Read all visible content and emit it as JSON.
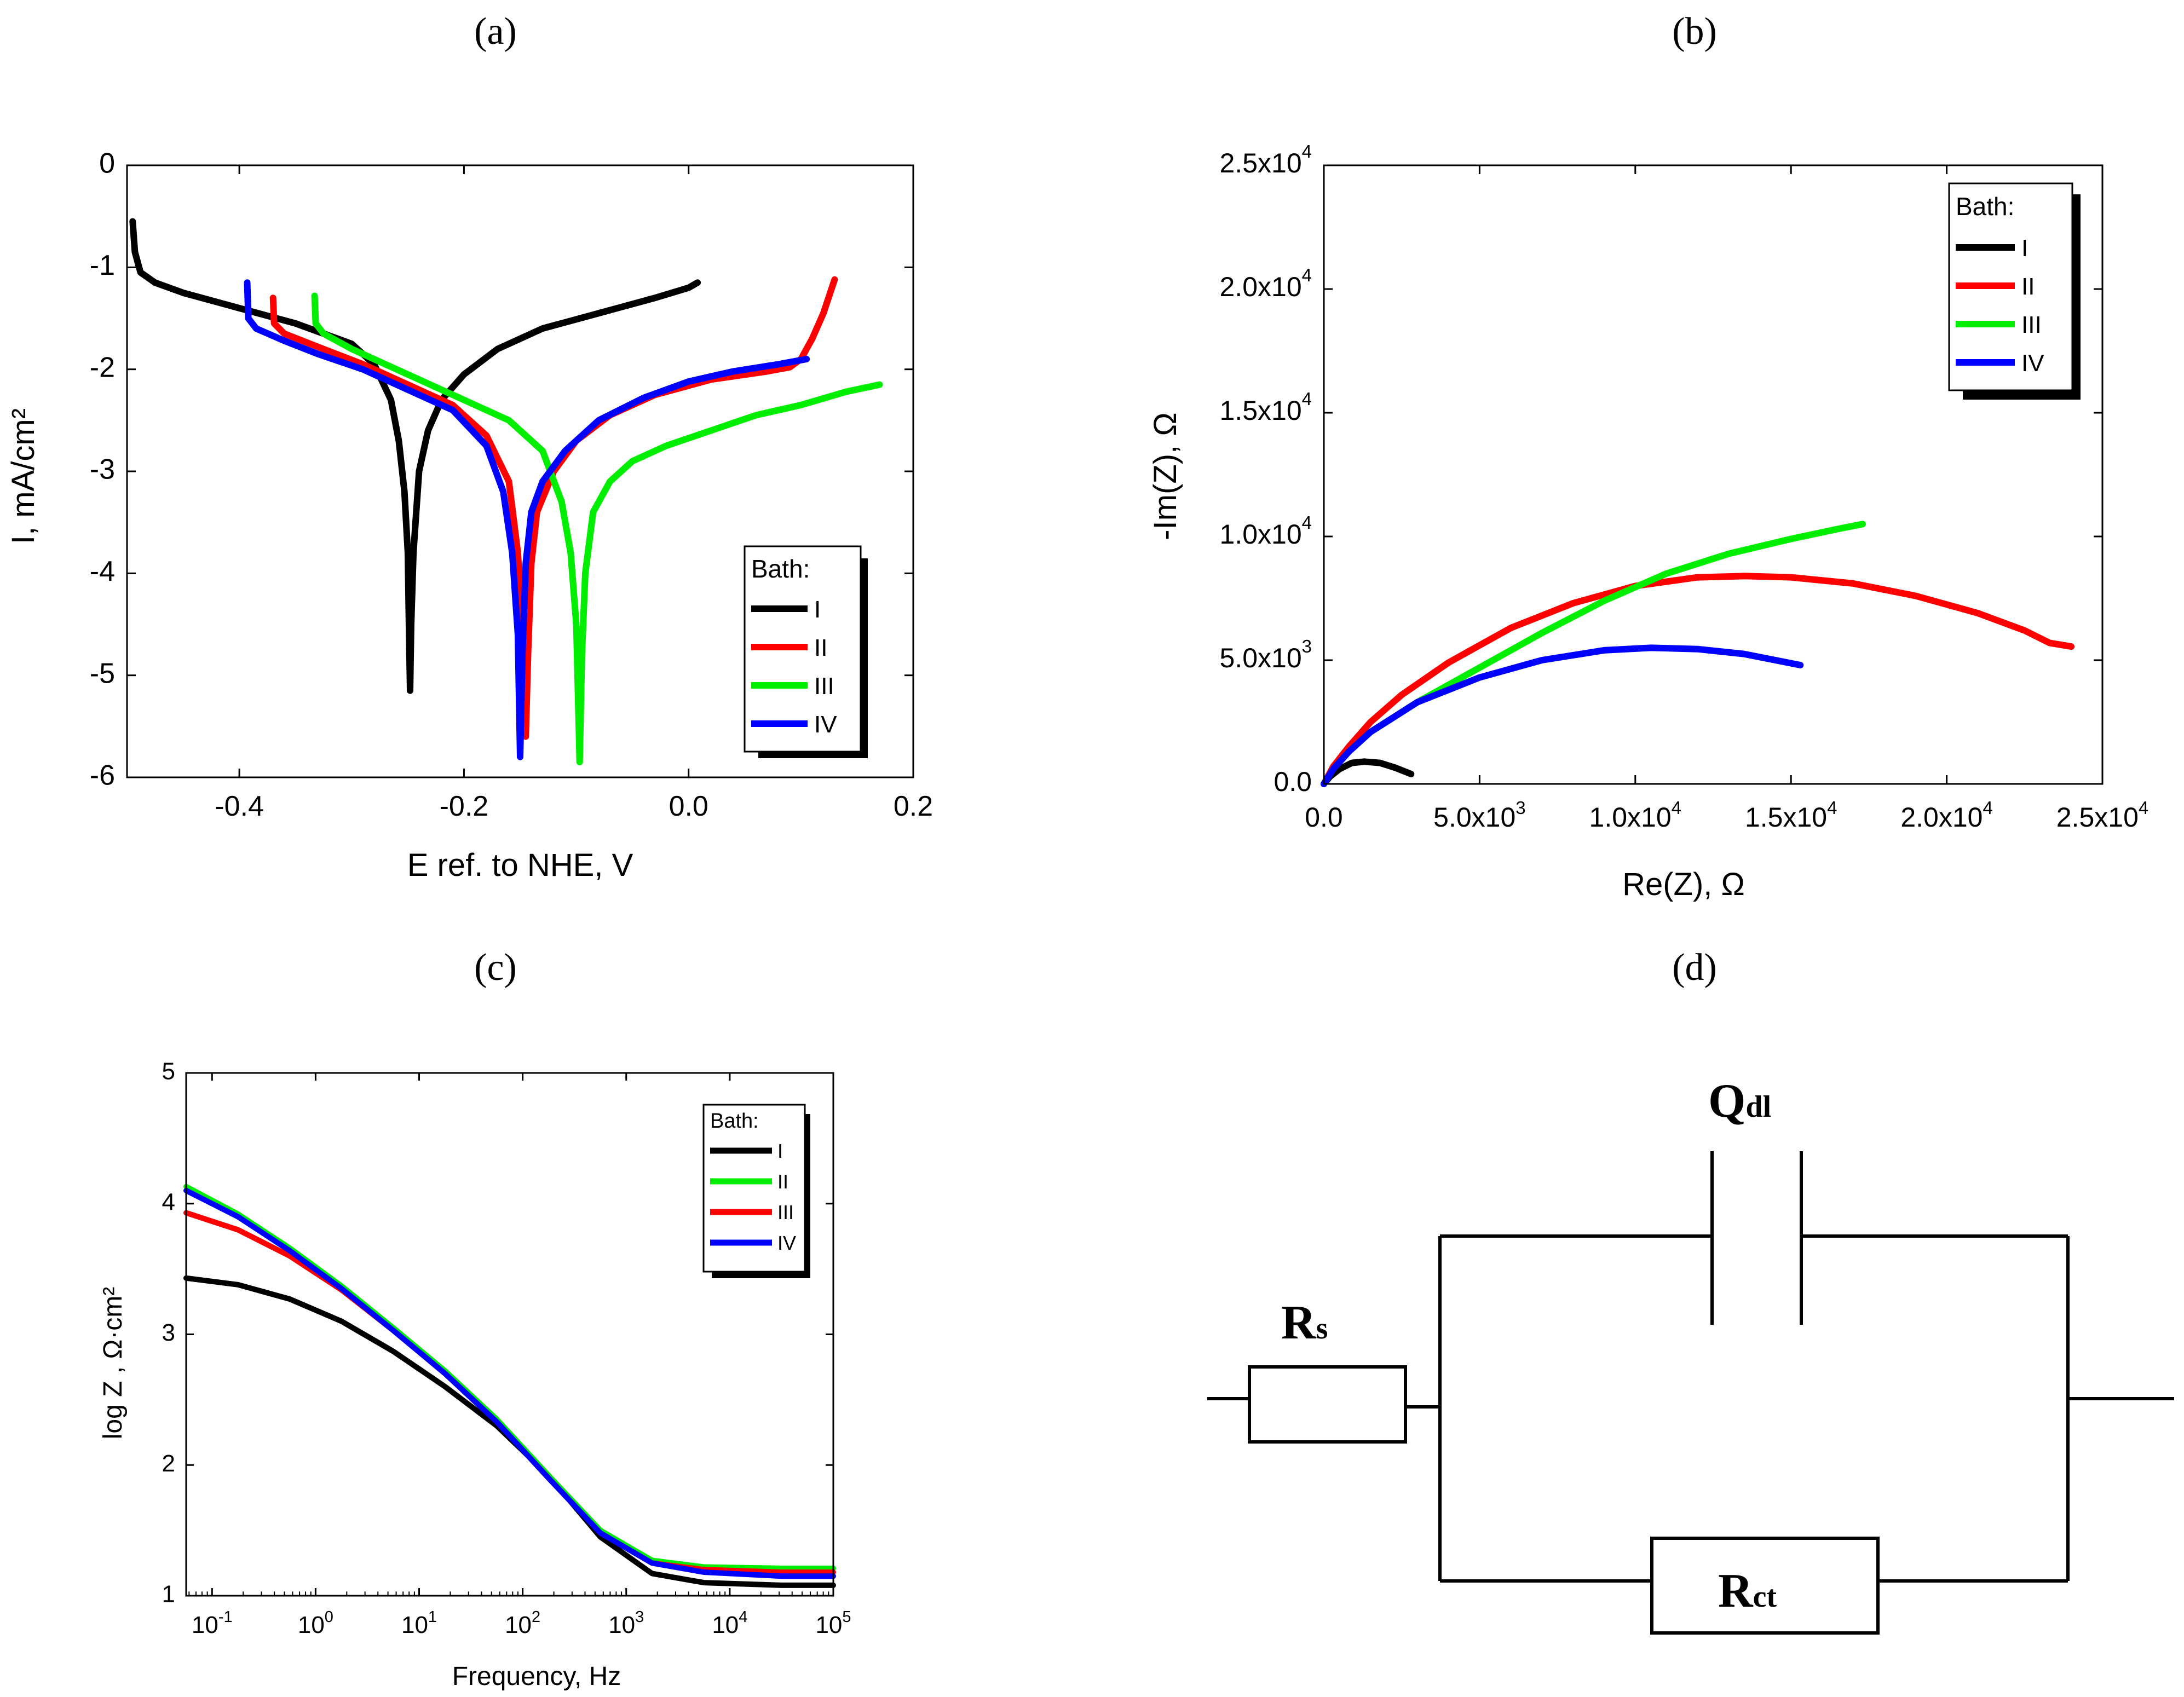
{
  "panel_labels": {
    "a": "(a)",
    "b": "(b)",
    "c": "(c)",
    "d": "(d)"
  },
  "colors": {
    "I": "#000000",
    "II": "#ff0000",
    "III": "#00ee00",
    "IV": "#0000ff"
  },
  "chart_data": [
    {
      "id": "a",
      "type": "line",
      "title": "",
      "xlabel": "E ref. to NHE, V",
      "ylabel": "I, mA/cm²",
      "xlim": [
        -0.5,
        0.2
      ],
      "ylim": [
        -6,
        0
      ],
      "xticks": [
        -0.4,
        -0.2,
        0.0,
        0.2
      ],
      "xticklabels": [
        "-0.4",
        "-0.2",
        "0.0",
        "0.2"
      ],
      "yticks": [
        0,
        -1,
        -2,
        -3,
        -4,
        -5,
        -6
      ],
      "yticklabels": [
        "0",
        "-1",
        "-2",
        "-3",
        "-4",
        "-5",
        "-6"
      ],
      "legend_title": "Bath:",
      "legend_position": "bottom-right",
      "series": [
        {
          "name": "I",
          "color": "#000000",
          "points": [
            [
              -0.495,
              -0.55
            ],
            [
              -0.493,
              -0.85
            ],
            [
              -0.488,
              -1.05
            ],
            [
              -0.475,
              -1.15
            ],
            [
              -0.45,
              -1.25
            ],
            [
              -0.4,
              -1.4
            ],
            [
              -0.35,
              -1.55
            ],
            [
              -0.3,
              -1.75
            ],
            [
              -0.28,
              -1.95
            ],
            [
              -0.265,
              -2.3
            ],
            [
              -0.258,
              -2.7
            ],
            [
              -0.253,
              -3.2
            ],
            [
              -0.25,
              -3.8
            ],
            [
              -0.249,
              -4.5
            ],
            [
              -0.248,
              -5.15
            ],
            [
              -0.247,
              -4.5
            ],
            [
              -0.245,
              -3.8
            ],
            [
              -0.24,
              -3.0
            ],
            [
              -0.232,
              -2.6
            ],
            [
              -0.22,
              -2.3
            ],
            [
              -0.2,
              -2.05
            ],
            [
              -0.17,
              -1.8
            ],
            [
              -0.13,
              -1.6
            ],
            [
              -0.08,
              -1.45
            ],
            [
              -0.03,
              -1.3
            ],
            [
              0.0,
              -1.2
            ],
            [
              0.008,
              -1.15
            ]
          ]
        },
        {
          "name": "II",
          "color": "#ff0000",
          "points": [
            [
              -0.37,
              -1.3
            ],
            [
              -0.369,
              -1.55
            ],
            [
              -0.36,
              -1.65
            ],
            [
              -0.33,
              -1.78
            ],
            [
              -0.29,
              -1.95
            ],
            [
              -0.25,
              -2.15
            ],
            [
              -0.21,
              -2.35
            ],
            [
              -0.18,
              -2.65
            ],
            [
              -0.16,
              -3.1
            ],
            [
              -0.152,
              -3.8
            ],
            [
              -0.148,
              -4.6
            ],
            [
              -0.145,
              -5.6
            ],
            [
              -0.143,
              -4.8
            ],
            [
              -0.14,
              -3.9
            ],
            [
              -0.135,
              -3.4
            ],
            [
              -0.12,
              -3.0
            ],
            [
              -0.1,
              -2.7
            ],
            [
              -0.07,
              -2.45
            ],
            [
              -0.03,
              -2.25
            ],
            [
              0.02,
              -2.1
            ],
            [
              0.07,
              -2.02
            ],
            [
              0.09,
              -1.98
            ],
            [
              0.1,
              -1.9
            ],
            [
              0.11,
              -1.7
            ],
            [
              0.12,
              -1.45
            ],
            [
              0.13,
              -1.12
            ]
          ]
        },
        {
          "name": "III",
          "color": "#00ee00",
          "points": [
            [
              -0.333,
              -1.28
            ],
            [
              -0.332,
              -1.55
            ],
            [
              -0.325,
              -1.65
            ],
            [
              -0.3,
              -1.8
            ],
            [
              -0.27,
              -1.95
            ],
            [
              -0.24,
              -2.1
            ],
            [
              -0.2,
              -2.3
            ],
            [
              -0.16,
              -2.5
            ],
            [
              -0.13,
              -2.8
            ],
            [
              -0.113,
              -3.3
            ],
            [
              -0.105,
              -3.8
            ],
            [
              -0.1,
              -4.5
            ],
            [
              -0.097,
              -5.85
            ],
            [
              -0.095,
              -4.8
            ],
            [
              -0.092,
              -4.0
            ],
            [
              -0.085,
              -3.4
            ],
            [
              -0.07,
              -3.1
            ],
            [
              -0.05,
              -2.9
            ],
            [
              -0.02,
              -2.75
            ],
            [
              0.02,
              -2.6
            ],
            [
              0.06,
              -2.45
            ],
            [
              0.1,
              -2.35
            ],
            [
              0.14,
              -2.22
            ],
            [
              0.17,
              -2.15
            ]
          ]
        },
        {
          "name": "IV",
          "color": "#0000ff",
          "points": [
            [
              -0.393,
              -1.15
            ],
            [
              -0.392,
              -1.5
            ],
            [
              -0.385,
              -1.6
            ],
            [
              -0.36,
              -1.72
            ],
            [
              -0.33,
              -1.85
            ],
            [
              -0.29,
              -2.0
            ],
            [
              -0.25,
              -2.2
            ],
            [
              -0.21,
              -2.4
            ],
            [
              -0.18,
              -2.75
            ],
            [
              -0.165,
              -3.2
            ],
            [
              -0.157,
              -3.8
            ],
            [
              -0.152,
              -4.6
            ],
            [
              -0.15,
              -5.8
            ],
            [
              -0.148,
              -4.8
            ],
            [
              -0.145,
              -3.9
            ],
            [
              -0.14,
              -3.4
            ],
            [
              -0.13,
              -3.1
            ],
            [
              -0.11,
              -2.8
            ],
            [
              -0.08,
              -2.5
            ],
            [
              -0.04,
              -2.28
            ],
            [
              0.0,
              -2.12
            ],
            [
              0.04,
              -2.02
            ],
            [
              0.08,
              -1.95
            ],
            [
              0.105,
              -1.9
            ]
          ]
        }
      ]
    },
    {
      "id": "b",
      "type": "line",
      "title": "",
      "xlabel": "Re(Z), Ω",
      "ylabel": "-Im(Z), Ω",
      "xlim": [
        0,
        25000
      ],
      "ylim": [
        0,
        25000
      ],
      "xticks": [
        0,
        5000,
        10000,
        15000,
        20000,
        25000
      ],
      "xticklabels": [
        {
          "base": "0.0",
          "exp": ""
        },
        {
          "base": "5.0x10",
          "exp": "3"
        },
        {
          "base": "1.0x10",
          "exp": "4"
        },
        {
          "base": "1.5x10",
          "exp": "4"
        },
        {
          "base": "2.0x10",
          "exp": "4"
        },
        {
          "base": "2.5x10",
          "exp": "4"
        }
      ],
      "yticks": [
        0,
        5000,
        10000,
        15000,
        20000,
        25000
      ],
      "yticklabels": [
        {
          "base": "0.0",
          "exp": ""
        },
        {
          "base": "5.0x10",
          "exp": "3"
        },
        {
          "base": "1.0x10",
          "exp": "4"
        },
        {
          "base": "1.5x10",
          "exp": "4"
        },
        {
          "base": "2.0x10",
          "exp": "4"
        },
        {
          "base": "2.5x10",
          "exp": "4"
        }
      ],
      "legend_title": "Bath:",
      "legend_position": "top-right",
      "series": [
        {
          "name": "I",
          "color": "#000000",
          "points": [
            [
              0,
              0
            ],
            [
              200,
              300
            ],
            [
              500,
              600
            ],
            [
              900,
              850
            ],
            [
              1300,
              900
            ],
            [
              1800,
              850
            ],
            [
              2300,
              650
            ],
            [
              2800,
              400
            ]
          ]
        },
        {
          "name": "II",
          "color": "#ff0000",
          "points": [
            [
              0,
              0
            ],
            [
              300,
              700
            ],
            [
              800,
              1500
            ],
            [
              1500,
              2500
            ],
            [
              2500,
              3600
            ],
            [
              4000,
              4900
            ],
            [
              6000,
              6300
            ],
            [
              8000,
              7300
            ],
            [
              10000,
              8000
            ],
            [
              12000,
              8350
            ],
            [
              13500,
              8400
            ],
            [
              15000,
              8350
            ],
            [
              17000,
              8100
            ],
            [
              19000,
              7600
            ],
            [
              21000,
              6900
            ],
            [
              22500,
              6200
            ],
            [
              23300,
              5700
            ],
            [
              24000,
              5550
            ]
          ]
        },
        {
          "name": "III",
          "color": "#00ee00",
          "points": [
            [
              0,
              0
            ],
            [
              300,
              600
            ],
            [
              800,
              1300
            ],
            [
              1500,
              2100
            ],
            [
              3000,
              3300
            ],
            [
              5000,
              4700
            ],
            [
              7000,
              6100
            ],
            [
              9000,
              7400
            ],
            [
              11000,
              8500
            ],
            [
              13000,
              9300
            ],
            [
              15000,
              9900
            ],
            [
              16500,
              10300
            ],
            [
              17300,
              10500
            ]
          ]
        },
        {
          "name": "IV",
          "color": "#0000ff",
          "points": [
            [
              0,
              0
            ],
            [
              300,
              600
            ],
            [
              800,
              1300
            ],
            [
              1500,
              2100
            ],
            [
              3000,
              3300
            ],
            [
              5000,
              4300
            ],
            [
              7000,
              5000
            ],
            [
              9000,
              5400
            ],
            [
              10500,
              5500
            ],
            [
              12000,
              5450
            ],
            [
              13500,
              5250
            ],
            [
              14500,
              5000
            ],
            [
              15300,
              4800
            ]
          ]
        }
      ]
    },
    {
      "id": "c",
      "type": "line",
      "title": "",
      "xlabel": "Frequency, Hz",
      "ylabel": "log Z , Ω·cm²",
      "xscale": "log",
      "xlim_log10": [
        -1.25,
        5
      ],
      "ylim": [
        1,
        5
      ],
      "xticks_log10": [
        -1,
        0,
        1,
        2,
        3,
        4,
        5
      ],
      "xticklabels": [
        {
          "base": "10",
          "exp": "-1"
        },
        {
          "base": "10",
          "exp": "0"
        },
        {
          "base": "10",
          "exp": "1"
        },
        {
          "base": "10",
          "exp": "2"
        },
        {
          "base": "10",
          "exp": "3"
        },
        {
          "base": "10",
          "exp": "4"
        },
        {
          "base": "10",
          "exp": "5"
        }
      ],
      "yticks": [
        1,
        2,
        3,
        4,
        5
      ],
      "yticklabels": [
        "1",
        "2",
        "3",
        "4",
        "5"
      ],
      "legend_title": "Bath:",
      "legend_position": "top-right",
      "legend_order": [
        "I",
        "II",
        "III",
        "IV"
      ],
      "series": [
        {
          "name": "I",
          "color": "#000000",
          "points": [
            [
              -1.25,
              3.43
            ],
            [
              -0.75,
              3.38
            ],
            [
              -0.25,
              3.27
            ],
            [
              0.25,
              3.1
            ],
            [
              0.75,
              2.87
            ],
            [
              1.25,
              2.6
            ],
            [
              1.75,
              2.3
            ],
            [
              2.25,
              1.92
            ],
            [
              2.75,
              1.45
            ],
            [
              3.25,
              1.17
            ],
            [
              3.75,
              1.1
            ],
            [
              4.5,
              1.08
            ],
            [
              5,
              1.08
            ]
          ]
        },
        {
          "name": "II",
          "color": "#00ee00",
          "points": [
            [
              -1.25,
              4.13
            ],
            [
              -0.75,
              3.92
            ],
            [
              -0.25,
              3.66
            ],
            [
              0.25,
              3.37
            ],
            [
              0.75,
              3.05
            ],
            [
              1.25,
              2.72
            ],
            [
              1.75,
              2.35
            ],
            [
              2.25,
              1.92
            ],
            [
              2.75,
              1.5
            ],
            [
              3.25,
              1.27
            ],
            [
              3.75,
              1.22
            ],
            [
              4.5,
              1.21
            ],
            [
              5,
              1.21
            ]
          ]
        },
        {
          "name": "III",
          "color": "#ff0000",
          "points": [
            [
              -1.25,
              3.93
            ],
            [
              -0.75,
              3.8
            ],
            [
              -0.25,
              3.6
            ],
            [
              0.25,
              3.34
            ],
            [
              0.75,
              3.03
            ],
            [
              1.25,
              2.7
            ],
            [
              1.75,
              2.33
            ],
            [
              2.25,
              1.9
            ],
            [
              2.75,
              1.48
            ],
            [
              3.25,
              1.25
            ],
            [
              3.75,
              1.2
            ],
            [
              4.5,
              1.18
            ],
            [
              5,
              1.18
            ]
          ]
        },
        {
          "name": "IV",
          "color": "#0000ff",
          "points": [
            [
              -1.25,
              4.1
            ],
            [
              -0.75,
              3.9
            ],
            [
              -0.25,
              3.64
            ],
            [
              0.25,
              3.35
            ],
            [
              0.75,
              3.03
            ],
            [
              1.25,
              2.7
            ],
            [
              1.75,
              2.33
            ],
            [
              2.25,
              1.9
            ],
            [
              2.75,
              1.48
            ],
            [
              3.25,
              1.25
            ],
            [
              3.75,
              1.18
            ],
            [
              4.5,
              1.15
            ],
            [
              5,
              1.15
            ]
          ]
        }
      ]
    }
  ],
  "circuit": {
    "labels": {
      "rs": {
        "main": "R",
        "sub": "s"
      },
      "qdl": {
        "main": "Q",
        "sub": "dl"
      },
      "rct": {
        "main": "R",
        "sub": "ct"
      }
    }
  }
}
